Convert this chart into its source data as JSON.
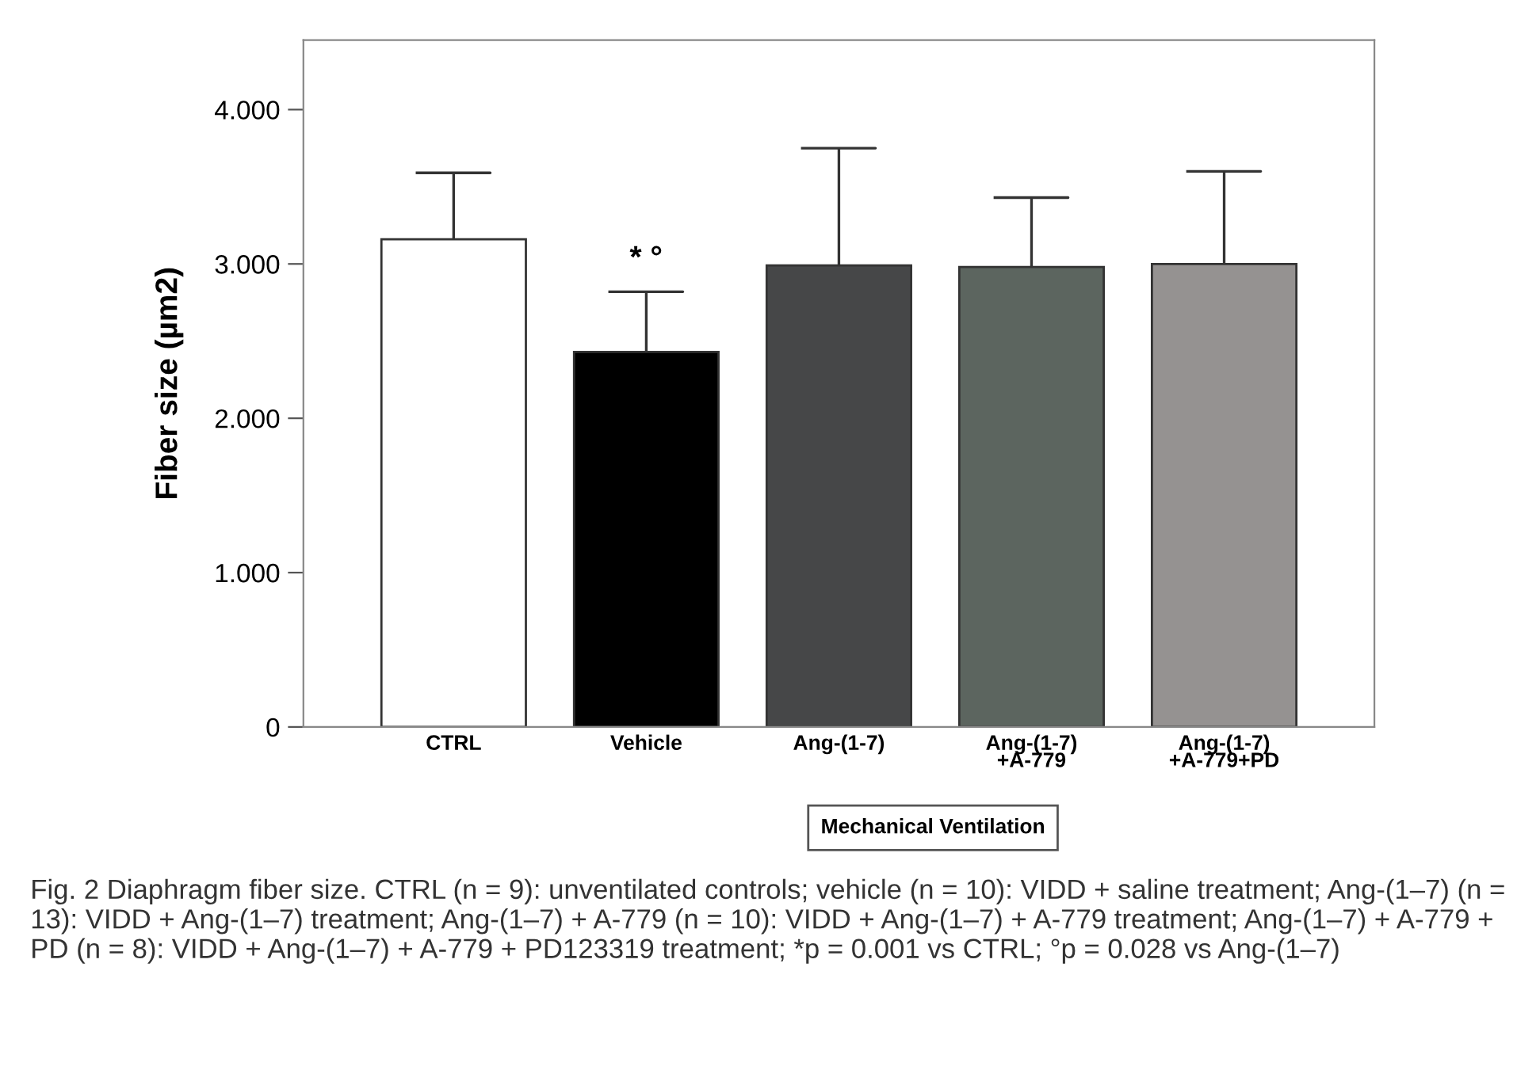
{
  "chart_data": {
    "type": "bar",
    "categories": [
      "CTRL",
      "Vehicle",
      "Ang-(1-7)",
      "Ang-(1-7)\n+A-779",
      "Ang-(1-7)\n+A-779+PD"
    ],
    "values": [
      3.16,
      2.43,
      2.99,
      2.98,
      3.0
    ],
    "colors": [
      "#ffffff",
      "#000000",
      "#464748",
      "#5c655f",
      "#959291"
    ],
    "errors": [
      [
        3.16,
        3.59
      ],
      [
        2.43,
        2.82
      ],
      [
        2.99,
        3.75
      ],
      [
        2.98,
        3.43
      ],
      [
        3.0,
        3.6
      ]
    ],
    "ylabel": "Fiber size (µm2)",
    "ylim": [
      0,
      4.45
    ],
    "yticks": [
      0,
      {
        "value": 1,
        "label": "1.000"
      },
      {
        "value": 2,
        "label": "2.000"
      },
      {
        "value": 3,
        "label": "3.000"
      },
      {
        "value": 4,
        "label": "4.000"
      }
    ],
    "grid": false,
    "legend": false,
    "annotations": [
      "* °",
      "Mechanical Ventilation",
      "Fig. 2 Diaphragm fiber size. CTRL (n = 9): unventilated controls; vehicle (n = 10): VIDD + saline treatment; Ang-(1–7) (n = 13): VIDD + Ang-(1–7) treatment; Ang-(1–7) + A-779 (n = 10): VIDD + Ang-(1–7) + A-779 treatment; Ang-(1–7) + A-779 + PD (n = 8): VIDD + Ang-(1–7) + A-779 + PD123319 treatment; *p = 0.001 vs CTRL; °p = 0.028 vs Ang-(1–7)"
    ]
  }
}
